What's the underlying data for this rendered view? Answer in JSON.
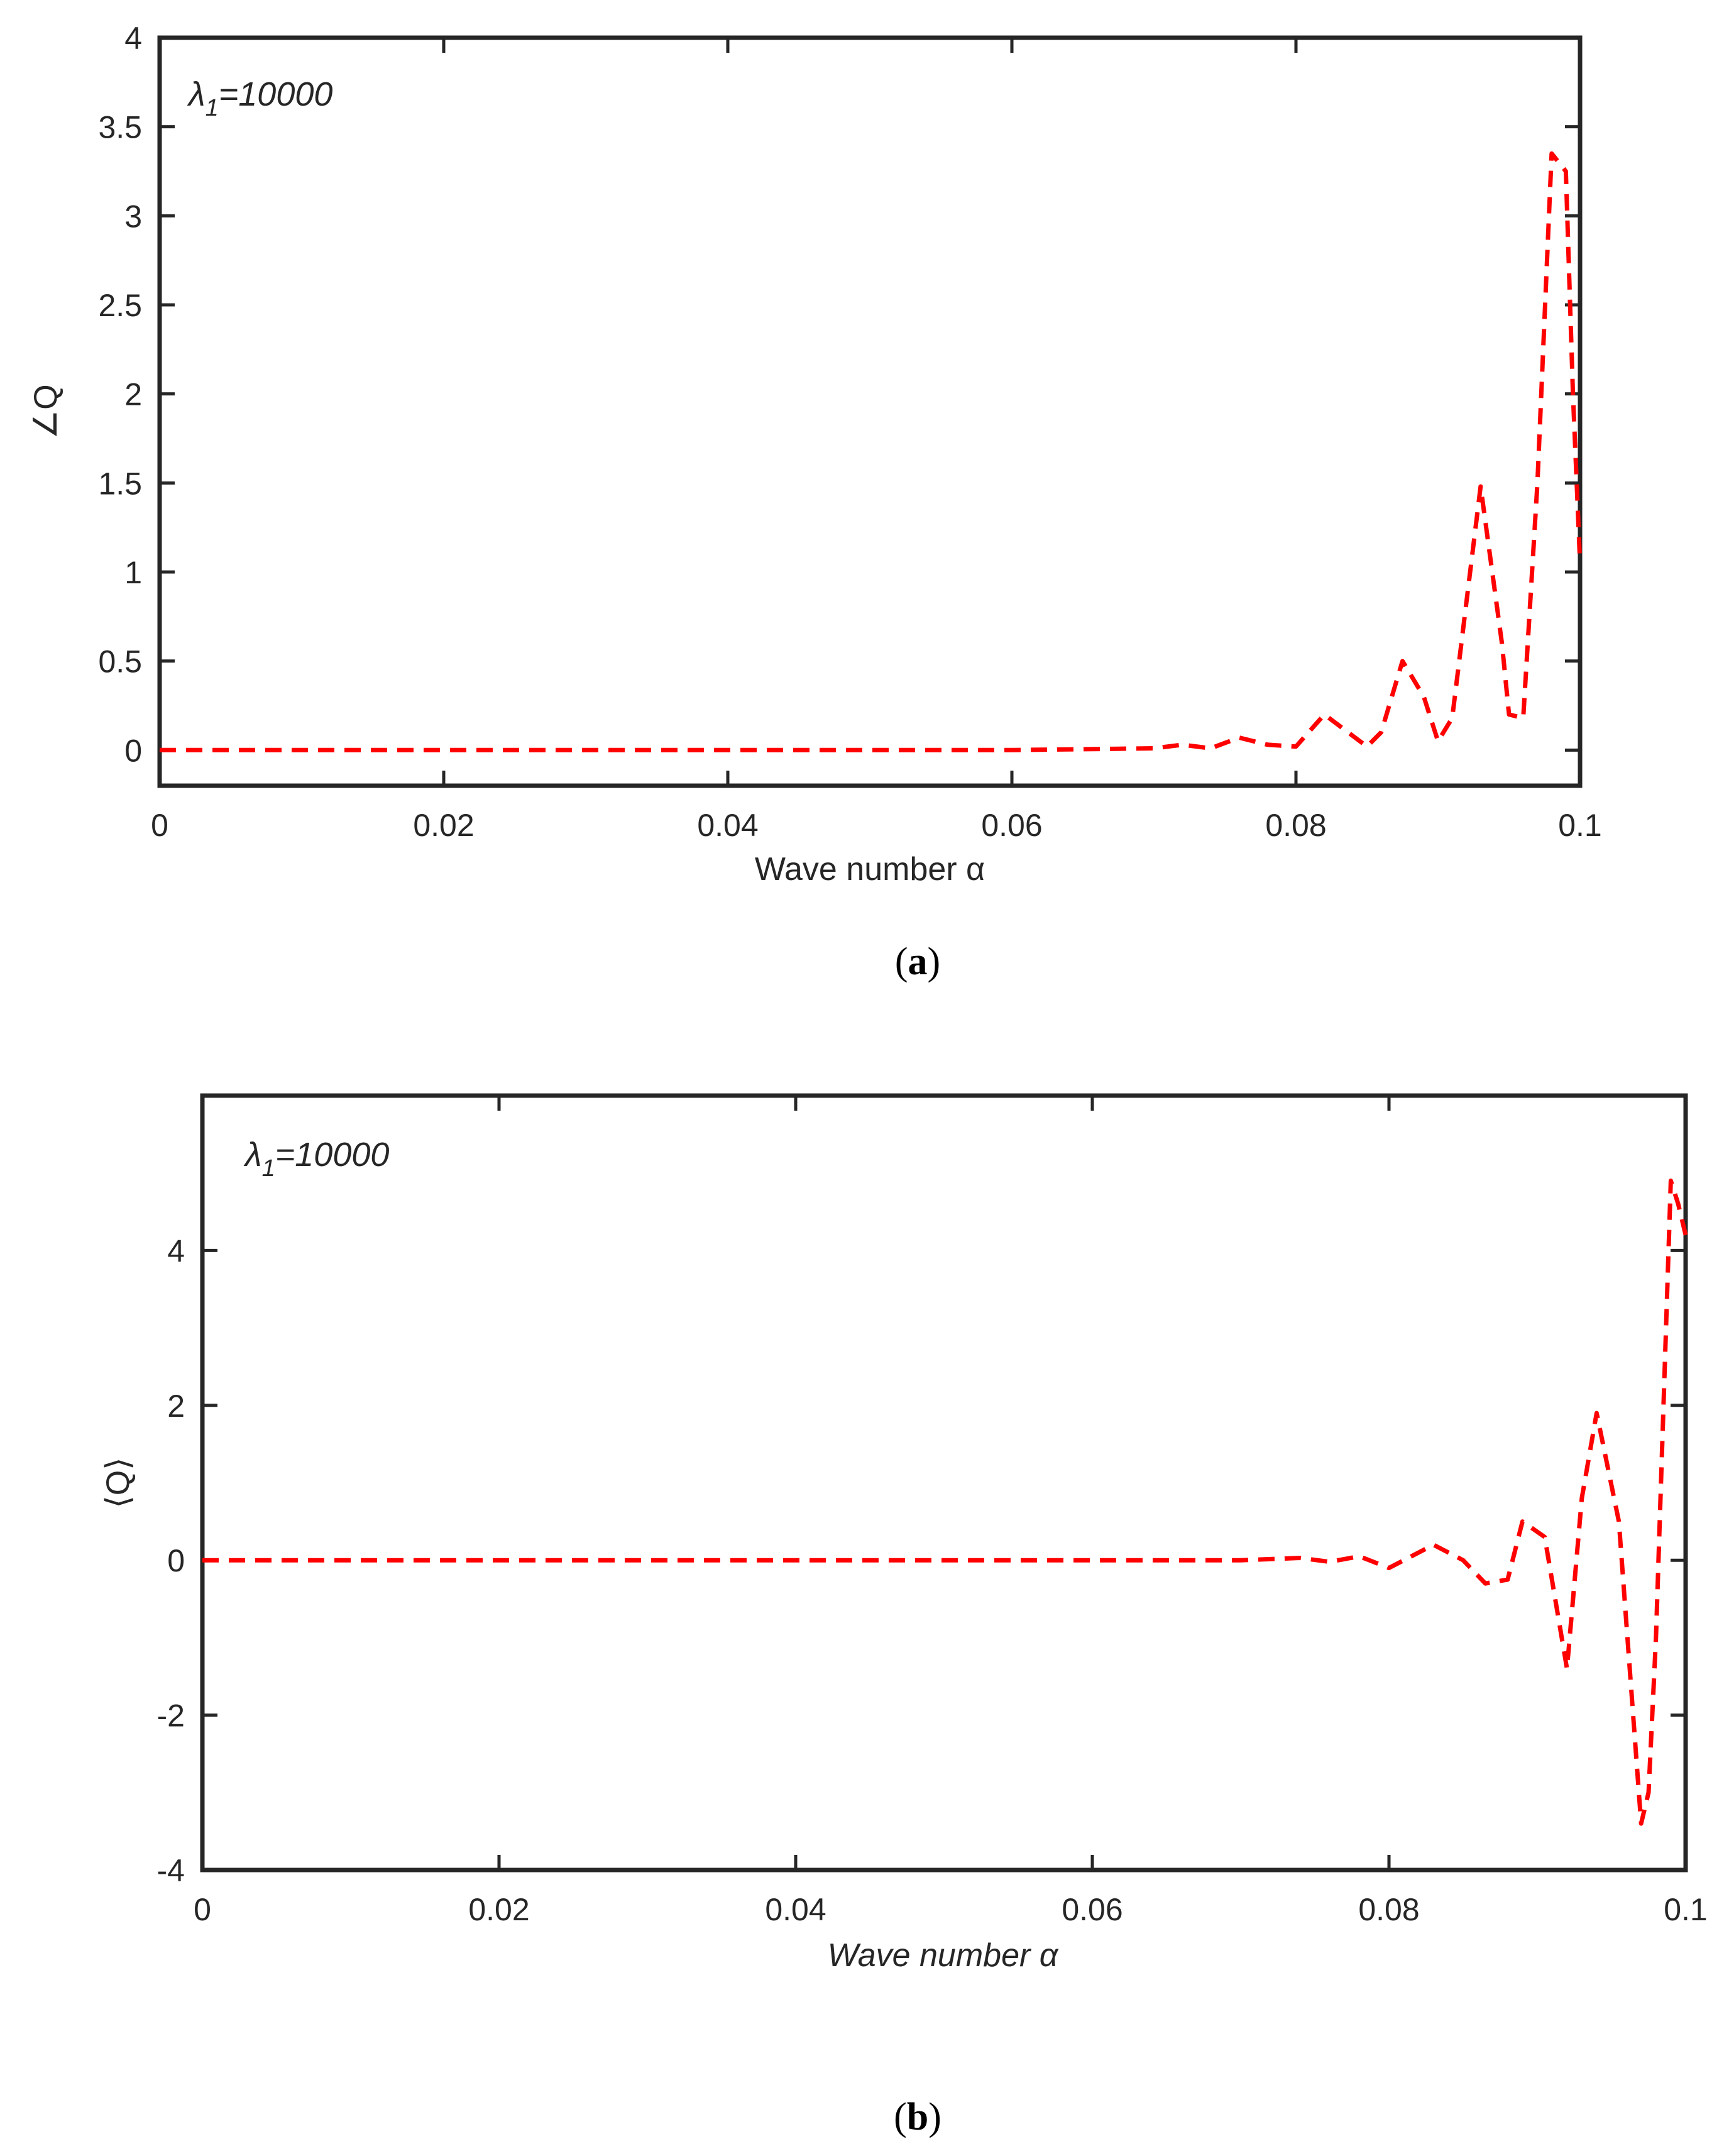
{
  "chart_data": [
    {
      "type": "line",
      "panel_label": "a",
      "annotation": "λ1=10000",
      "annotation_symbol": "λ",
      "annotation_sub": "1",
      "annotation_rest": "=10000",
      "xlabel": "Wave number  α",
      "ylabel": "∠Q",
      "xlim": [
        0,
        0.1
      ],
      "ylim": [
        -0.2,
        4
      ],
      "xticks": [
        0,
        0.02,
        0.04,
        0.06,
        0.08,
        0.1
      ],
      "xtick_labels": [
        "0",
        "0.02",
        "0.04",
        "0.06",
        "0.08",
        "0.1"
      ],
      "yticks": [
        0,
        0.5,
        1,
        1.5,
        2,
        2.5,
        3,
        3.5,
        4
      ],
      "ytick_labels": [
        "0",
        "0.5",
        "1",
        "1.5",
        "2",
        "2.5",
        "3",
        "3.5",
        "4"
      ],
      "grid": false,
      "series": [
        {
          "color": "#ff0000",
          "style": "dashed",
          "x": [
            0.0,
            0.01,
            0.02,
            0.03,
            0.04,
            0.05,
            0.06,
            0.065,
            0.07,
            0.072,
            0.074,
            0.076,
            0.078,
            0.08,
            0.082,
            0.084,
            0.085,
            0.086,
            0.0875,
            0.089,
            0.09,
            0.091,
            0.093,
            0.0945,
            0.095,
            0.096,
            0.097,
            0.098,
            0.099,
            0.0995,
            0.1
          ],
          "y": [
            0,
            0,
            0,
            0,
            0,
            0,
            0,
            0.005,
            0.01,
            0.03,
            0.01,
            0.07,
            0.03,
            0.02,
            0.2,
            0.08,
            0.02,
            0.1,
            0.5,
            0.3,
            0.05,
            0.18,
            1.48,
            0.6,
            0.2,
            0.18,
            1.5,
            3.35,
            3.25,
            2.0,
            1.05
          ]
        }
      ]
    },
    {
      "type": "line",
      "panel_label": "b",
      "annotation": "λ1=10000",
      "annotation_symbol": "λ",
      "annotation_sub": "1",
      "annotation_rest": "=10000",
      "xlabel": "Wave number α",
      "ylabel": "⟨Q⟩",
      "xlim": [
        0,
        0.1
      ],
      "ylim": [
        -4,
        6
      ],
      "xticks": [
        0,
        0.02,
        0.04,
        0.06,
        0.08,
        0.1
      ],
      "xtick_labels": [
        "0",
        "0.02",
        "0.04",
        "0.06",
        "0.08",
        "0.1"
      ],
      "yticks": [
        -4,
        -2,
        0,
        2,
        4
      ],
      "ytick_labels": [
        "-4",
        "-2",
        "0",
        "2",
        "4"
      ],
      "grid": false,
      "series": [
        {
          "color": "#ff0000",
          "style": "dashed",
          "x": [
            0.0,
            0.01,
            0.02,
            0.03,
            0.04,
            0.05,
            0.06,
            0.07,
            0.074,
            0.076,
            0.078,
            0.08,
            0.083,
            0.085,
            0.0865,
            0.088,
            0.089,
            0.0905,
            0.092,
            0.093,
            0.094,
            0.0955,
            0.097,
            0.0975,
            0.098,
            0.099,
            0.0995,
            0.1
          ],
          "y": [
            0,
            0,
            0,
            0,
            0,
            0,
            0,
            0,
            0.03,
            -0.02,
            0.05,
            -0.1,
            0.2,
            0.0,
            -0.3,
            -0.25,
            0.5,
            0.3,
            -1.4,
            0.8,
            1.9,
            0.5,
            -3.4,
            -3.0,
            -1.0,
            4.9,
            4.6,
            4.2
          ]
        }
      ]
    }
  ]
}
